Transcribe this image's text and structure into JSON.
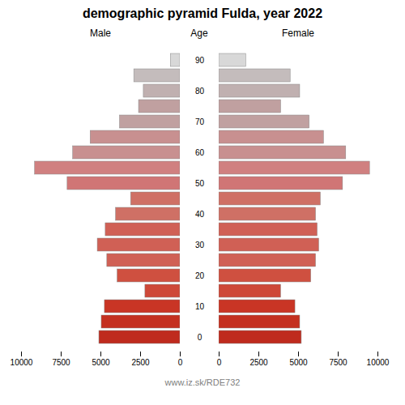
{
  "chart_data": {
    "type": "bar",
    "orientation": "horizontal",
    "title": "demographic pyramid Fulda, year 2022",
    "ylabel": "Age",
    "categories": [
      "0",
      null,
      "10",
      null,
      "20",
      null,
      "30",
      null,
      "40",
      null,
      "50",
      null,
      "60",
      null,
      "70",
      null,
      "80",
      null,
      "90"
    ],
    "series": [
      {
        "name": "Male",
        "values": [
          5100,
          4950,
          4750,
          2200,
          3950,
          4600,
          5200,
          4700,
          4050,
          3100,
          7100,
          9150,
          6750,
          5650,
          3800,
          2600,
          2300,
          2900,
          600
        ]
      },
      {
        "name": "Female",
        "values": [
          5200,
          5100,
          4800,
          3900,
          5800,
          6100,
          6300,
          6200,
          6100,
          6400,
          7800,
          9500,
          8000,
          6600,
          5700,
          3900,
          5100,
          4500,
          1700
        ]
      }
    ],
    "colors": [
      "#bf2b1e",
      "#c43020",
      "#c93525",
      "#ce4838",
      "#cf5040",
      "#d06055",
      "#d06055",
      "#d06055",
      "#cf7065",
      "#cf7065",
      "#d07575",
      "#d08080",
      "#c89090",
      "#c89090",
      "#c0a0a0",
      "#c0a0a0",
      "#c0b0b0",
      "#c4bcbc",
      "#d8d8d8"
    ],
    "xlim": [
      0,
      10000
    ],
    "xticks": [
      0,
      2500,
      5000,
      7500,
      10000
    ],
    "annotations": [
      "www.iz.sk/RDE732"
    ]
  }
}
